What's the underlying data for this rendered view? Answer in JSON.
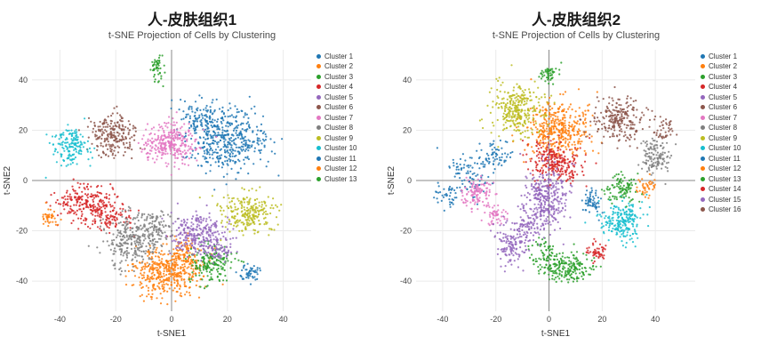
{
  "chart_data": [
    {
      "type": "scatter",
      "title": "人-皮肤组织1",
      "subtitle": "t-SNE Projection of Cells by Clustering",
      "xlabel": "t-SNE1",
      "ylabel": "t-SNE2",
      "xlim": [
        -50,
        50
      ],
      "ylim": [
        -52,
        52
      ],
      "xticks": [
        -40,
        -20,
        0,
        20,
        40
      ],
      "yticks": [
        -40,
        -20,
        0,
        20,
        40
      ],
      "grid": true,
      "zeroline": true,
      "legend_position": "right",
      "series": [
        {
          "name": "Cluster 1",
          "color": "#1f77b4",
          "blobs": [
            {
              "c": [
                20,
                16
              ],
              "s": [
                7,
                6
              ],
              "n": 420
            },
            {
              "c": [
                10,
                24
              ],
              "s": [
                4,
                4
              ],
              "n": 120
            }
          ]
        },
        {
          "name": "Cluster 2",
          "color": "#ff7f0e",
          "blobs": [
            {
              "c": [
                -2,
                -37
              ],
              "s": [
                6,
                5
              ],
              "n": 380
            },
            {
              "c": [
                5,
                -30
              ],
              "s": [
                4,
                4
              ],
              "n": 120
            }
          ]
        },
        {
          "name": "Cluster 3",
          "color": "#2ca02c",
          "blobs": [
            {
              "c": [
                14,
                -33
              ],
              "s": [
                4,
                4
              ],
              "n": 180
            }
          ]
        },
        {
          "name": "Cluster 4",
          "color": "#d62728",
          "blobs": [
            {
              "c": [
                -31,
                -9
              ],
              "s": [
                5,
                4
              ],
              "n": 220
            },
            {
              "c": [
                -22,
                -14
              ],
              "s": [
                4,
                3
              ],
              "n": 100
            }
          ]
        },
        {
          "name": "Cluster 5",
          "color": "#9467bd",
          "blobs": [
            {
              "c": [
                9,
                -21
              ],
              "s": [
                5,
                4
              ],
              "n": 260
            },
            {
              "c": [
                16,
                -27
              ],
              "s": [
                3,
                3
              ],
              "n": 80
            }
          ]
        },
        {
          "name": "Cluster 6",
          "color": "#8c564b",
          "blobs": [
            {
              "c": [
                -21,
                18
              ],
              "s": [
                4,
                4
              ],
              "n": 220
            }
          ]
        },
        {
          "name": "Cluster 7",
          "color": "#e377c2",
          "blobs": [
            {
              "c": [
                -1,
                15
              ],
              "s": [
                5,
                4
              ],
              "n": 300
            }
          ]
        },
        {
          "name": "Cluster 8",
          "color": "#7f7f7f",
          "blobs": [
            {
              "c": [
                -14,
                -24
              ],
              "s": [
                5,
                5
              ],
              "n": 280
            },
            {
              "c": [
                -5,
                -18
              ],
              "s": [
                3,
                3
              ],
              "n": 80
            }
          ]
        },
        {
          "name": "Cluster 9",
          "color": "#bcbd22",
          "blobs": [
            {
              "c": [
                27,
                -13
              ],
              "s": [
                5,
                4
              ],
              "n": 240
            }
          ]
        },
        {
          "name": "Cluster 10",
          "color": "#17becf",
          "blobs": [
            {
              "c": [
                -36,
                14
              ],
              "s": [
                3,
                4
              ],
              "n": 160
            }
          ]
        },
        {
          "name": "Cluster 11",
          "color": "#1f77b4",
          "blobs": [
            {
              "c": [
                28,
                -37
              ],
              "s": [
                2,
                2
              ],
              "n": 50
            }
          ]
        },
        {
          "name": "Cluster 12",
          "color": "#ff7f0e",
          "blobs": [
            {
              "c": [
                -43,
                -15
              ],
              "s": [
                2,
                2
              ],
              "n": 40
            }
          ]
        },
        {
          "name": "Cluster 13",
          "color": "#2ca02c",
          "blobs": [
            {
              "c": [
                -5,
                44
              ],
              "s": [
                1.5,
                2.5
              ],
              "n": 50
            }
          ]
        }
      ]
    },
    {
      "type": "scatter",
      "title": "人-皮肤组织2",
      "subtitle": "t-SNE Projection of Cells by Clustering",
      "xlabel": "t-SNE1",
      "ylabel": "t-SNE2",
      "xlim": [
        -50,
        55
      ],
      "ylim": [
        -52,
        52
      ],
      "xticks": [
        -40,
        -20,
        0,
        20,
        40
      ],
      "yticks": [
        -40,
        -20,
        0,
        20,
        40
      ],
      "grid": true,
      "zeroline": true,
      "legend_position": "right",
      "series": [
        {
          "name": "Cluster 1",
          "color": "#1f77b4",
          "blobs": [
            {
              "c": [
                -30,
                2
              ],
              "s": [
                4,
                5
              ],
              "n": 90
            },
            {
              "c": [
                -38,
                -5
              ],
              "s": [
                2,
                3
              ],
              "n": 40
            },
            {
              "c": [
                -20,
                10
              ],
              "s": [
                3,
                3
              ],
              "n": 60
            }
          ]
        },
        {
          "name": "Cluster 2",
          "color": "#ff7f0e",
          "blobs": [
            {
              "c": [
                4,
                20
              ],
              "s": [
                6,
                6
              ],
              "n": 420
            }
          ]
        },
        {
          "name": "Cluster 3",
          "color": "#2ca02c",
          "blobs": [
            {
              "c": [
                7,
                -35
              ],
              "s": [
                5,
                3
              ],
              "n": 200
            },
            {
              "c": [
                -2,
                -30
              ],
              "s": [
                3,
                3
              ],
              "n": 60
            }
          ]
        },
        {
          "name": "Cluster 4",
          "color": "#d62728",
          "blobs": [
            {
              "c": [
                3,
                7
              ],
              "s": [
                5,
                4
              ],
              "n": 260
            }
          ]
        },
        {
          "name": "Cluster 5",
          "color": "#9467bd",
          "blobs": [
            {
              "c": [
                -1,
                -7
              ],
              "s": [
                4,
                6
              ],
              "n": 320
            },
            {
              "c": [
                -8,
                -18
              ],
              "s": [
                3,
                3
              ],
              "n": 80
            }
          ]
        },
        {
          "name": "Cluster 6",
          "color": "#8c564b",
          "blobs": [
            {
              "c": [
                26,
                24
              ],
              "s": [
                5,
                4
              ],
              "n": 240
            }
          ]
        },
        {
          "name": "Cluster 7",
          "color": "#e377c2",
          "blobs": [
            {
              "c": [
                -27,
                -5
              ],
              "s": [
                3,
                3
              ],
              "n": 120
            },
            {
              "c": [
                -20,
                -14
              ],
              "s": [
                2,
                2
              ],
              "n": 50
            }
          ]
        },
        {
          "name": "Cluster 8",
          "color": "#7f7f7f",
          "blobs": [
            {
              "c": [
                40,
                9
              ],
              "s": [
                3,
                4
              ],
              "n": 130
            }
          ]
        },
        {
          "name": "Cluster 9",
          "color": "#bcbd22",
          "blobs": [
            {
              "c": [
                -12,
                28
              ],
              "s": [
                5,
                5
              ],
              "n": 300
            }
          ]
        },
        {
          "name": "Cluster 10",
          "color": "#17becf",
          "blobs": [
            {
              "c": [
                28,
                -16
              ],
              "s": [
                4,
                4
              ],
              "n": 220
            }
          ]
        },
        {
          "name": "Cluster 11",
          "color": "#1f77b4",
          "blobs": [
            {
              "c": [
                16,
                -8
              ],
              "s": [
                2,
                3
              ],
              "n": 60
            }
          ]
        },
        {
          "name": "Cluster 12",
          "color": "#ff7f0e",
          "blobs": [
            {
              "c": [
                36,
                -2
              ],
              "s": [
                2,
                2
              ],
              "n": 40
            }
          ]
        },
        {
          "name": "Cluster 13",
          "color": "#2ca02c",
          "blobs": [
            {
              "c": [
                0,
                43
              ],
              "s": [
                2,
                2
              ],
              "n": 50
            },
            {
              "c": [
                27,
                -3
              ],
              "s": [
                3,
                3
              ],
              "n": 100
            }
          ]
        },
        {
          "name": "Cluster 14",
          "color": "#d62728",
          "blobs": [
            {
              "c": [
                18,
                -28
              ],
              "s": [
                2,
                2
              ],
              "n": 50
            }
          ]
        },
        {
          "name": "Cluster 15",
          "color": "#9467bd",
          "blobs": [
            {
              "c": [
                -14,
                -25
              ],
              "s": [
                3,
                4
              ],
              "n": 130
            }
          ]
        },
        {
          "name": "Cluster 16",
          "color": "#8c564b",
          "blobs": [
            {
              "c": [
                44,
                20
              ],
              "s": [
                2,
                2
              ],
              "n": 40
            }
          ]
        }
      ]
    }
  ],
  "style": {
    "grid_color": "#ebebeb",
    "zeroline_color": "#8a8a8a",
    "point_radius": 1.1,
    "point_opacity": 0.85
  }
}
